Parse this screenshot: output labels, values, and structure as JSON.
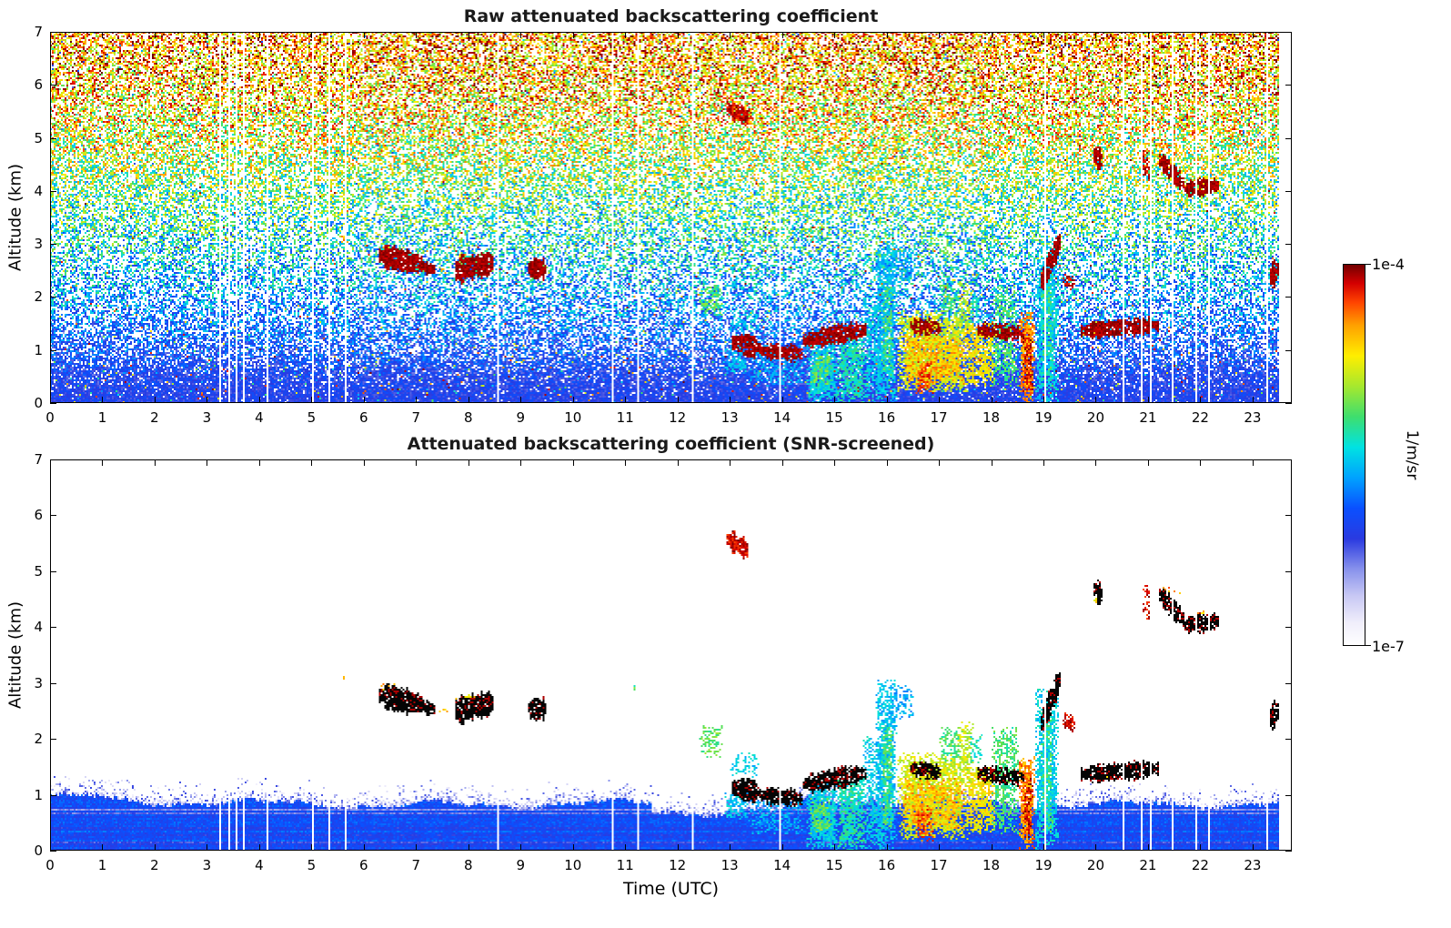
{
  "chart_data": {
    "type": "heatmap",
    "description": "24-hour time-height curtain plots of lidar attenuated backscattering coefficient; top panel raw signal, bottom panel SNR-screened.",
    "x_axis": {
      "label": "Time (UTC)",
      "range": [
        0,
        23.75
      ],
      "data_end": 23.5,
      "ticks": [
        0,
        1,
        2,
        3,
        4,
        5,
        6,
        7,
        8,
        9,
        10,
        11,
        12,
        13,
        14,
        15,
        16,
        17,
        18,
        19,
        20,
        21,
        22,
        23
      ]
    },
    "y_axis": {
      "label": "Altitude (km)",
      "range": [
        0,
        7
      ],
      "ticks": [
        0,
        1,
        2,
        3,
        4,
        5,
        6,
        7
      ]
    },
    "colorbar": {
      "unit": "1/m/sr",
      "max_label": "1e-4",
      "min_label": "1e-7",
      "scale": "log",
      "colormap_stops": [
        [
          0.0,
          "#ffffff"
        ],
        [
          0.06,
          "#f0eefb"
        ],
        [
          0.13,
          "#c8c8f4"
        ],
        [
          0.2,
          "#8892ec"
        ],
        [
          0.28,
          "#2a3ae0"
        ],
        [
          0.36,
          "#0a50ff"
        ],
        [
          0.44,
          "#00a2ff"
        ],
        [
          0.52,
          "#00e2e2"
        ],
        [
          0.6,
          "#3ede6e"
        ],
        [
          0.68,
          "#a6e82e"
        ],
        [
          0.76,
          "#ffee00"
        ],
        [
          0.84,
          "#ffa000"
        ],
        [
          0.9,
          "#ff4400"
        ],
        [
          0.95,
          "#d40000"
        ],
        [
          1.0,
          "#700000"
        ]
      ]
    },
    "panels": [
      {
        "id": "raw",
        "title": "Raw attenuated backscattering coefficient",
        "noise_profile_format": "altitude_km, mean_value, jitter, gap_probability",
        "noise_profile": [
          [
            0.0,
            0.3,
            0.05,
            0.02
          ],
          [
            0.5,
            0.3,
            0.08,
            0.1
          ],
          [
            1.0,
            0.34,
            0.12,
            0.35
          ],
          [
            2.0,
            0.42,
            0.16,
            0.5
          ],
          [
            3.0,
            0.52,
            0.19,
            0.52
          ],
          [
            4.0,
            0.62,
            0.21,
            0.48
          ],
          [
            5.0,
            0.72,
            0.22,
            0.44
          ],
          [
            6.0,
            0.8,
            0.21,
            0.42
          ],
          [
            7.0,
            0.85,
            0.19,
            0.4
          ]
        ],
        "uniform_speckle_prob": 0.05
      },
      {
        "id": "screened",
        "title": "Attenuated backscattering coefficient (SNR-screened)",
        "boundary_layer": {
          "base_height_km": 0.85,
          "variation_km": 0.12,
          "core_value": 0.29,
          "speckle_decay_km": 0.12,
          "dip_interval_utc": [
            11.5,
            14.3
          ],
          "dip_km": 0.18
        }
      }
    ],
    "features": {
      "cloud_layers_format": "t0,t1,alt_start_km,alt_end_km,half_thickness_km,density (dark red in raw panel, black in screened panel)",
      "cloud_layers": [
        [
          6.3,
          7.15,
          2.8,
          2.62,
          0.18,
          0.92
        ],
        [
          7.18,
          7.38,
          2.58,
          2.54,
          0.1,
          0.9
        ],
        [
          7.75,
          8.5,
          2.52,
          2.66,
          0.22,
          0.93
        ],
        [
          9.15,
          9.5,
          2.55,
          2.55,
          0.16,
          0.92
        ],
        [
          13.05,
          13.6,
          1.15,
          1.05,
          0.16,
          0.9
        ],
        [
          13.6,
          14.4,
          1.0,
          0.95,
          0.13,
          0.88
        ],
        [
          14.4,
          15.6,
          1.2,
          1.4,
          0.15,
          0.85
        ],
        [
          16.45,
          17.05,
          1.48,
          1.42,
          0.12,
          0.8
        ],
        [
          17.75,
          18.65,
          1.4,
          1.32,
          0.12,
          0.8
        ],
        [
          18.95,
          19.35,
          2.3,
          3.05,
          0.22,
          0.9
        ],
        [
          19.7,
          21.2,
          1.38,
          1.48,
          0.14,
          0.9
        ],
        [
          19.95,
          20.15,
          4.68,
          4.6,
          0.18,
          0.85
        ],
        [
          21.2,
          21.7,
          4.6,
          4.15,
          0.16,
          0.88
        ],
        [
          21.7,
          22.35,
          4.05,
          4.12,
          0.14,
          0.88
        ],
        [
          23.32,
          23.5,
          2.4,
          2.52,
          0.2,
          0.9
        ]
      ],
      "red_layers_format": "t0,t1,alt_start_km,alt_end_km,half_thickness_km,density (red in both panels)",
      "red_layers": [
        [
          12.95,
          13.35,
          5.6,
          5.4,
          0.15,
          0.9
        ],
        [
          19.38,
          19.6,
          2.35,
          2.28,
          0.12,
          0.6
        ],
        [
          20.9,
          21.05,
          4.55,
          4.4,
          0.35,
          0.45
        ]
      ],
      "patches_format": "t0,t1,alt_bottom_km,alt_top_km,value(0-1 on colormap),density (aerosol/precip plume, both panels)",
      "patches": [
        [
          12.4,
          12.85,
          1.65,
          2.25,
          0.62,
          0.5
        ],
        [
          12.9,
          13.35,
          0.55,
          1.05,
          0.48,
          0.65
        ],
        [
          13.35,
          14.45,
          0.3,
          0.95,
          0.45,
          0.45
        ],
        [
          13.0,
          13.55,
          1.3,
          1.75,
          0.5,
          0.35
        ],
        [
          14.45,
          15.1,
          0.0,
          1.2,
          0.5,
          0.85
        ],
        [
          14.55,
          14.95,
          0.3,
          0.95,
          0.62,
          0.6
        ],
        [
          15.05,
          15.6,
          0.0,
          1.35,
          0.55,
          0.75
        ],
        [
          15.55,
          16.0,
          0.0,
          2.05,
          0.5,
          0.55
        ],
        [
          15.78,
          16.22,
          0.0,
          3.05,
          0.48,
          0.7
        ],
        [
          15.88,
          16.12,
          0.4,
          2.3,
          0.6,
          0.55
        ],
        [
          16.05,
          16.55,
          2.3,
          2.95,
          0.45,
          0.45
        ],
        [
          16.2,
          17.55,
          0.2,
          1.75,
          0.72,
          0.85
        ],
        [
          16.3,
          17.5,
          0.35,
          1.3,
          0.82,
          0.6
        ],
        [
          16.55,
          16.9,
          0.15,
          0.8,
          0.9,
          0.55
        ],
        [
          17.0,
          17.45,
          1.6,
          2.25,
          0.6,
          0.45
        ],
        [
          17.35,
          17.68,
          1.2,
          2.3,
          0.7,
          0.5
        ],
        [
          17.5,
          18.1,
          0.3,
          1.5,
          0.76,
          0.7
        ],
        [
          17.55,
          17.85,
          1.5,
          2.1,
          0.55,
          0.4
        ],
        [
          18.0,
          18.55,
          0.3,
          2.2,
          0.6,
          0.55
        ],
        [
          18.55,
          18.85,
          0.0,
          1.7,
          0.85,
          0.85
        ],
        [
          18.62,
          18.8,
          0.2,
          1.3,
          0.95,
          0.6
        ],
        [
          18.85,
          19.3,
          0.0,
          2.9,
          0.5,
          0.75
        ],
        [
          18.95,
          19.18,
          0.3,
          2.5,
          0.58,
          0.5
        ],
        [
          5.55,
          5.68,
          3.02,
          3.15,
          0.82,
          0.6
        ],
        [
          6.3,
          6.62,
          2.88,
          2.98,
          0.82,
          0.45
        ],
        [
          7.45,
          7.6,
          2.45,
          2.58,
          0.8,
          0.4
        ],
        [
          7.75,
          8.25,
          2.7,
          2.8,
          0.78,
          0.4
        ],
        [
          19.95,
          20.15,
          4.42,
          4.58,
          0.75,
          0.5
        ],
        [
          21.2,
          21.62,
          4.58,
          4.76,
          0.85,
          0.35
        ],
        [
          21.95,
          22.35,
          4.14,
          4.3,
          0.8,
          0.35
        ],
        [
          19.7,
          20.35,
          1.26,
          1.36,
          0.8,
          0.45
        ],
        [
          11.15,
          11.28,
          2.88,
          3.0,
          0.6,
          0.4
        ]
      ],
      "missing_profile_times_utc": [
        3.22,
        3.42,
        3.55,
        3.68,
        4.15,
        5.02,
        5.32,
        5.62,
        8.55,
        10.75,
        11.22,
        12.28,
        13.95,
        19.02,
        20.52,
        20.88,
        21.05,
        21.45,
        21.92,
        22.15,
        23.28
      ]
    }
  }
}
